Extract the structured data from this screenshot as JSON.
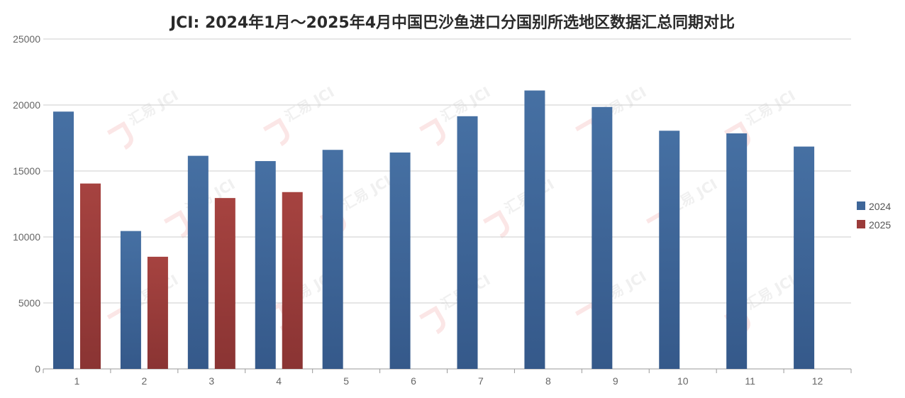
{
  "chart_data": {
    "type": "bar",
    "title": "JCI: 2024年1月～2025年4月中国巴沙鱼进口分国别所选地区数据汇总同期对比",
    "categories": [
      "1",
      "2",
      "3",
      "4",
      "5",
      "6",
      "7",
      "8",
      "9",
      "10",
      "11",
      "12"
    ],
    "series": [
      {
        "name": "2024",
        "color": "#3e6699",
        "values": [
          19500,
          10450,
          16150,
          15750,
          16600,
          16400,
          19150,
          21100,
          19850,
          18050,
          17850,
          16850
        ]
      },
      {
        "name": "2025",
        "color": "#9b3b3a",
        "values": [
          14050,
          8500,
          12950,
          13400,
          null,
          null,
          null,
          null,
          null,
          null,
          null,
          null
        ]
      }
    ],
    "ylim": [
      0,
      25000
    ],
    "yticks": [
      0,
      5000,
      10000,
      15000,
      20000,
      25000
    ],
    "grid": true,
    "legend": "right",
    "watermark": "汇易 JCI"
  }
}
